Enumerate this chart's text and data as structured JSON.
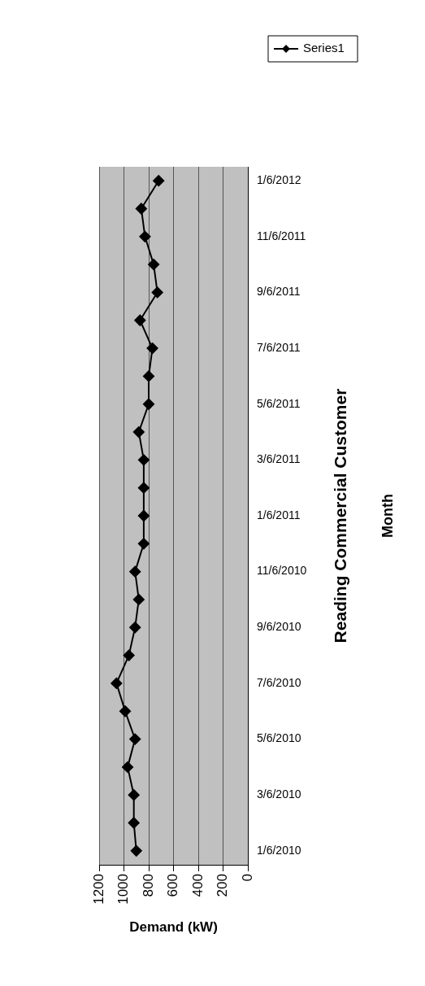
{
  "chart_data": {
    "type": "line",
    "orientation": "horizontal",
    "title": "Reading Commercial Customer",
    "xlabel": "Demand (kW)",
    "ylabel": "Month",
    "categories": [
      "1/6/2012",
      null,
      "11/6/2011",
      null,
      "9/6/2011",
      null,
      "7/6/2011",
      null,
      "5/6/2011",
      null,
      "3/6/2011",
      null,
      "1/6/2011",
      null,
      "11/6/2010",
      null,
      "9/6/2010",
      null,
      "7/6/2010",
      null,
      "5/6/2010",
      null,
      "3/6/2010",
      null,
      "1/6/2010"
    ],
    "series": [
      {
        "name": "Series1",
        "color": "#000000",
        "values": [
          720,
          860,
          830,
          760,
          730,
          870,
          770,
          800,
          800,
          880,
          840,
          840,
          840,
          840,
          910,
          880,
          910,
          960,
          1060,
          990,
          910,
          970,
          920,
          920,
          900
        ]
      }
    ],
    "xlim": [
      1200,
      0
    ],
    "xticks": [
      1200,
      1000,
      800,
      600,
      400,
      200,
      0
    ],
    "grid": "x",
    "legend": "right",
    "marker": "diamond",
    "line_style": "solid"
  }
}
